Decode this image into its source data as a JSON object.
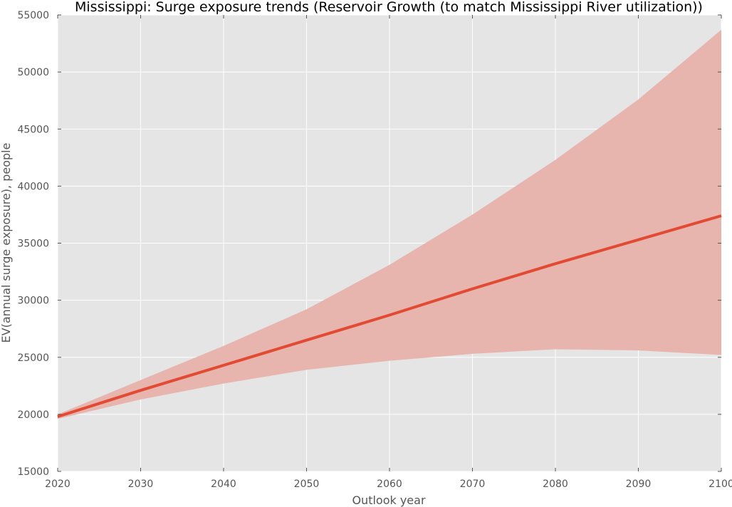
{
  "chart_data": {
    "type": "line",
    "title": "Mississippi: Surge exposure trends (Reservoir Growth (to match Mississippi River utilization))",
    "xlabel": "Outlook year",
    "ylabel": "EV(annual surge exposure), people",
    "xlim": [
      2020,
      2100
    ],
    "ylim": [
      15000,
      55000
    ],
    "x_ticks": [
      "2020",
      "2030",
      "2040",
      "2050",
      "2060",
      "2070",
      "2080",
      "2090",
      "2100"
    ],
    "y_ticks": [
      "15000",
      "20000",
      "25000",
      "30000",
      "35000",
      "40000",
      "45000",
      "50000",
      "55000"
    ],
    "grid": true,
    "x": [
      2020,
      2030,
      2040,
      2050,
      2060,
      2070,
      2080,
      2090,
      2100
    ],
    "series": [
      {
        "values": [
          19800,
          22100,
          24300,
          26500,
          28700,
          31000,
          33200,
          35300,
          37400
        ],
        "color": "#e24a33"
      }
    ],
    "band": {
      "lower": [
        19600,
        21300,
        22700,
        23900,
        24700,
        25300,
        25700,
        25600,
        25200
      ],
      "upper": [
        20000,
        23000,
        26000,
        29200,
        33100,
        37500,
        42300,
        47600,
        53700
      ],
      "color": "#e24a33"
    }
  },
  "colors": {
    "plot_background": "#e5e5e5",
    "grid": "#ffffff",
    "line": "#e24a33",
    "band_fill": "#e8b4ae"
  }
}
